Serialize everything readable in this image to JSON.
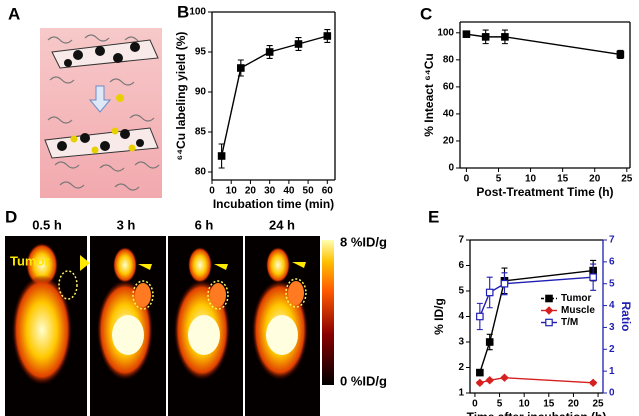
{
  "panel_labels": [
    "A",
    "B",
    "C",
    "D",
    "E"
  ],
  "imaging": {
    "times": [
      "0.5 h",
      "3 h",
      "6 h",
      "24 h"
    ],
    "tumor_label": "Tumor",
    "scale_max": "8 %ID/g",
    "scale_min": "0 %ID/g"
  },
  "chart_data": [
    {
      "type": "line",
      "xlabel": "Incubation time (min)",
      "ylabel": "⁶⁴Cu labeling yield (%)",
      "x": [
        5,
        15,
        30,
        45,
        60
      ],
      "xlim": [
        0,
        64
      ],
      "xticks": [
        0,
        10,
        20,
        30,
        40,
        50,
        60
      ],
      "ylim": [
        79,
        100
      ],
      "yticks": [
        80,
        85,
        90,
        95,
        100
      ],
      "series": [
        {
          "color": "#000000",
          "marker": "square",
          "values": [
            82,
            93,
            95,
            96,
            97
          ],
          "errors": [
            1.5,
            1,
            0.8,
            0.8,
            0.8
          ]
        }
      ]
    },
    {
      "type": "line",
      "xlabel": "Post-Treatment Time (h)",
      "ylabel": "% Inteact ⁶⁴Cu",
      "x": [
        0,
        3,
        6,
        24
      ],
      "xlim": [
        -1,
        25.5
      ],
      "xticks": [
        0,
        5,
        10,
        15,
        20,
        25
      ],
      "ylim": [
        0,
        108
      ],
      "yticks": [
        0,
        20,
        40,
        60,
        80,
        100
      ],
      "series": [
        {
          "color": "#000000",
          "marker": "square",
          "values": [
            99,
            97,
            97,
            84
          ],
          "errors": [
            1,
            5,
            5,
            3
          ]
        }
      ]
    },
    {
      "type": "line",
      "xlabel": "Time after incubation (h)",
      "ylabel": "% ID/g",
      "y2label": "Ratio",
      "x": [
        1,
        3,
        6,
        24
      ],
      "xlim": [
        -1,
        26
      ],
      "xticks": [
        0,
        5,
        10,
        15,
        20,
        25
      ],
      "ylim": [
        1,
        7
      ],
      "yticks": [
        1,
        2,
        3,
        4,
        5,
        6,
        7
      ],
      "y2lim": [
        0,
        7
      ],
      "y2ticks": [
        0,
        1,
        2,
        3,
        4,
        5,
        6,
        7
      ],
      "y2color": "#1f1fb4",
      "legend": "center right",
      "series": [
        {
          "name": "Tumor",
          "color": "#000000",
          "marker": "square",
          "values": [
            1.8,
            3,
            5.4,
            5.8
          ],
          "errors": [
            0.1,
            0.3,
            0.5,
            0.4
          ]
        },
        {
          "name": "Muscle",
          "color": "#d62020",
          "marker": "diamond",
          "values": [
            1.4,
            1.5,
            1.6,
            1.4
          ],
          "errors": [
            0.05,
            0.05,
            0.05,
            0.05
          ]
        },
        {
          "name": "T/M",
          "color": "#1f1fb4",
          "marker": "open-square",
          "axis": "y2",
          "values": [
            3.5,
            4.6,
            5.0,
            5.3
          ],
          "errors": [
            0.6,
            0.7,
            0.5,
            0.6
          ]
        }
      ]
    }
  ]
}
